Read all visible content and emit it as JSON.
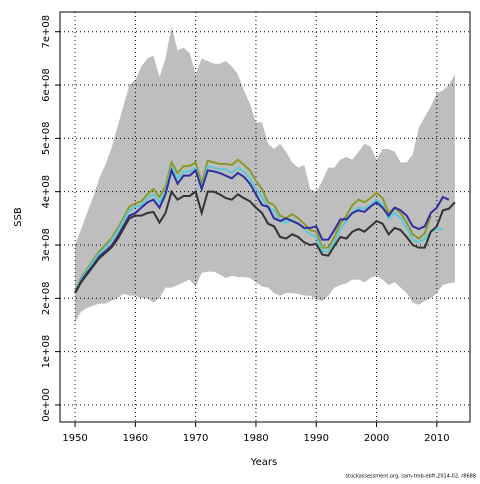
{
  "chart_data": {
    "type": "line",
    "xlabel": "Years",
    "ylabel": "SSB",
    "footnote": "stockassessment.org, sam-tmb-ebft-2014-02, r8688",
    "x": [
      1950,
      1951,
      1952,
      1953,
      1954,
      1955,
      1956,
      1957,
      1958,
      1959,
      1960,
      1961,
      1962,
      1963,
      1964,
      1965,
      1966,
      1967,
      1968,
      1969,
      1970,
      1971,
      1972,
      1973,
      1974,
      1975,
      1976,
      1977,
      1978,
      1979,
      1980,
      1981,
      1982,
      1983,
      1984,
      1985,
      1986,
      1987,
      1988,
      1989,
      1990,
      1991,
      1992,
      1993,
      1994,
      1995,
      1996,
      1997,
      1998,
      1999,
      2000,
      2001,
      2002,
      2003,
      2004,
      2005,
      2006,
      2007,
      2008,
      2009,
      2010,
      2011,
      2012,
      2013
    ],
    "band": {
      "color": "#bebebe",
      "upper": [
        300000000.0,
        330000000.0,
        360000000.0,
        390000000.0,
        425000000.0,
        450000000.0,
        480000000.0,
        520000000.0,
        560000000.0,
        600000000.0,
        610000000.0,
        635000000.0,
        650000000.0,
        655000000.0,
        615000000.0,
        650000000.0,
        710000000.0,
        665000000.0,
        670000000.0,
        660000000.0,
        620000000.0,
        650000000.0,
        645000000.0,
        640000000.0,
        640000000.0,
        645000000.0,
        635000000.0,
        620000000.0,
        590000000.0,
        565000000.0,
        530000000.0,
        530000000.0,
        490000000.0,
        480000000.0,
        490000000.0,
        475000000.0,
        455000000.0,
        445000000.0,
        450000000.0,
        405000000.0,
        400000000.0,
        420000000.0,
        445000000.0,
        445000000.0,
        460000000.0,
        465000000.0,
        460000000.0,
        475000000.0,
        490000000.0,
        485000000.0,
        460000000.0,
        480000000.0,
        480000000.0,
        475000000.0,
        455000000.0,
        455000000.0,
        470000000.0,
        520000000.0,
        540000000.0,
        560000000.0,
        585000000.0,
        590000000.0,
        600000000.0,
        620000000.0
      ],
      "lower": [
        155000000.0,
        175000000.0,
        182000000.0,
        186000000.0,
        190000000.0,
        190000000.0,
        195000000.0,
        200000000.0,
        208000000.0,
        205000000.0,
        205000000.0,
        200000000.0,
        200000000.0,
        192000000.0,
        200000000.0,
        220000000.0,
        220000000.0,
        225000000.0,
        230000000.0,
        235000000.0,
        222000000.0,
        248000000.0,
        250000000.0,
        250000000.0,
        245000000.0,
        238000000.0,
        242000000.0,
        240000000.0,
        240000000.0,
        238000000.0,
        230000000.0,
        222000000.0,
        220000000.0,
        210000000.0,
        205000000.0,
        210000000.0,
        210000000.0,
        208000000.0,
        205000000.0,
        205000000.0,
        198000000.0,
        195000000.0,
        205000000.0,
        220000000.0,
        225000000.0,
        228000000.0,
        235000000.0,
        235000000.0,
        230000000.0,
        238000000.0,
        242000000.0,
        235000000.0,
        225000000.0,
        230000000.0,
        220000000.0,
        210000000.0,
        192000000.0,
        188000000.0,
        195000000.0,
        200000000.0,
        210000000.0,
        225000000.0,
        228000000.0,
        230000000.0
      ]
    },
    "series": [
      {
        "color": "#8a9a2a",
        "values": [
          212000000.0,
          238000000.0,
          255000000.0,
          272000000.0,
          288000000.0,
          300000000.0,
          312000000.0,
          330000000.0,
          350000000.0,
          372000000.0,
          378000000.0,
          382000000.0,
          395000000.0,
          405000000.0,
          390000000.0,
          410000000.0,
          455000000.0,
          435000000.0,
          448000000.0,
          448000000.0,
          455000000.0,
          415000000.0,
          458000000.0,
          455000000.0,
          452000000.0,
          452000000.0,
          450000000.0,
          460000000.0,
          450000000.0,
          440000000.0,
          420000000.0,
          405000000.0,
          380000000.0,
          375000000.0,
          355000000.0,
          350000000.0,
          358000000.0,
          350000000.0,
          340000000.0,
          328000000.0,
          325000000.0,
          295000000.0,
          295000000.0,
          315000000.0,
          340000000.0,
          355000000.0,
          375000000.0,
          385000000.0,
          380000000.0,
          388000000.0,
          398000000.0,
          388000000.0,
          360000000.0,
          370000000.0,
          360000000.0,
          342000000.0,
          320000000.0,
          312000000.0,
          322000000.0,
          355000000.0,
          null,
          null,
          null,
          null
        ]
      },
      {
        "color": "#5bc8d8",
        "values": [
          210000000.0,
          235000000.0,
          252000000.0,
          268000000.0,
          284000000.0,
          295000000.0,
          308000000.0,
          325000000.0,
          345000000.0,
          365000000.0,
          372000000.0,
          375000000.0,
          388000000.0,
          395000000.0,
          380000000.0,
          400000000.0,
          445000000.0,
          425000000.0,
          438000000.0,
          438000000.0,
          445000000.0,
          405000000.0,
          448000000.0,
          445000000.0,
          442000000.0,
          442000000.0,
          435000000.0,
          445000000.0,
          438000000.0,
          425000000.0,
          405000000.0,
          390000000.0,
          370000000.0,
          365000000.0,
          345000000.0,
          342000000.0,
          348000000.0,
          340000000.0,
          330000000.0,
          320000000.0,
          315000000.0,
          288000000.0,
          288000000.0,
          305000000.0,
          330000000.0,
          345000000.0,
          362000000.0,
          370000000.0,
          368000000.0,
          375000000.0,
          385000000.0,
          375000000.0,
          350000000.0,
          360000000.0,
          350000000.0,
          332000000.0,
          310000000.0,
          305000000.0,
          312000000.0,
          325000000.0,
          330000000.0,
          330000000.0,
          null,
          null
        ]
      },
      {
        "color": "#2e2e9e",
        "values": [
          210000000.0,
          232000000.0,
          248000000.0,
          262000000.0,
          278000000.0,
          288000000.0,
          298000000.0,
          315000000.0,
          335000000.0,
          355000000.0,
          360000000.0,
          370000000.0,
          380000000.0,
          385000000.0,
          370000000.0,
          395000000.0,
          440000000.0,
          415000000.0,
          430000000.0,
          430000000.0,
          440000000.0,
          405000000.0,
          440000000.0,
          438000000.0,
          435000000.0,
          430000000.0,
          425000000.0,
          435000000.0,
          428000000.0,
          415000000.0,
          395000000.0,
          375000000.0,
          372000000.0,
          350000000.0,
          345000000.0,
          350000000.0,
          345000000.0,
          340000000.0,
          332000000.0,
          332000000.0,
          335000000.0,
          310000000.0,
          310000000.0,
          328000000.0,
          348000000.0,
          348000000.0,
          360000000.0,
          365000000.0,
          362000000.0,
          372000000.0,
          380000000.0,
          370000000.0,
          355000000.0,
          370000000.0,
          365000000.0,
          355000000.0,
          335000000.0,
          330000000.0,
          335000000.0,
          360000000.0,
          370000000.0,
          390000000.0,
          385000000.0,
          null
        ]
      },
      {
        "color": "#333333",
        "values": [
          210000000.0,
          230000000.0,
          245000000.0,
          260000000.0,
          275000000.0,
          285000000.0,
          295000000.0,
          310000000.0,
          330000000.0,
          350000000.0,
          355000000.0,
          355000000.0,
          360000000.0,
          362000000.0,
          342000000.0,
          360000000.0,
          400000000.0,
          385000000.0,
          392000000.0,
          392000000.0,
          400000000.0,
          360000000.0,
          400000000.0,
          400000000.0,
          395000000.0,
          388000000.0,
          385000000.0,
          395000000.0,
          388000000.0,
          382000000.0,
          370000000.0,
          360000000.0,
          340000000.0,
          335000000.0,
          315000000.0,
          312000000.0,
          320000000.0,
          315000000.0,
          305000000.0,
          300000000.0,
          302000000.0,
          282000000.0,
          280000000.0,
          298000000.0,
          315000000.0,
          312000000.0,
          325000000.0,
          330000000.0,
          325000000.0,
          335000000.0,
          345000000.0,
          340000000.0,
          320000000.0,
          332000000.0,
          328000000.0,
          315000000.0,
          300000000.0,
          295000000.0,
          295000000.0,
          325000000.0,
          335000000.0,
          365000000.0,
          368000000.0,
          380000000.0
        ]
      }
    ],
    "xlim": [
      1947.5,
      2015.5
    ],
    "xticks": [
      1950,
      1960,
      1970,
      1980,
      1990,
      2000,
      2010
    ],
    "ylim": [
      -32000000.0,
      737000000.0
    ],
    "yticks": [
      {
        "value": 0,
        "label": "0e+00"
      },
      {
        "value": 100000000.0,
        "label": "1e+08"
      },
      {
        "value": 200000000.0,
        "label": "2e+08"
      },
      {
        "value": 300000000.0,
        "label": "3e+08"
      },
      {
        "value": 400000000.0,
        "label": "4e+08"
      },
      {
        "value": 500000000.0,
        "label": "5e+08"
      },
      {
        "value": 600000000.0,
        "label": "6e+08"
      },
      {
        "value": 700000000.0,
        "label": "7e+08"
      }
    ],
    "grid": true
  }
}
